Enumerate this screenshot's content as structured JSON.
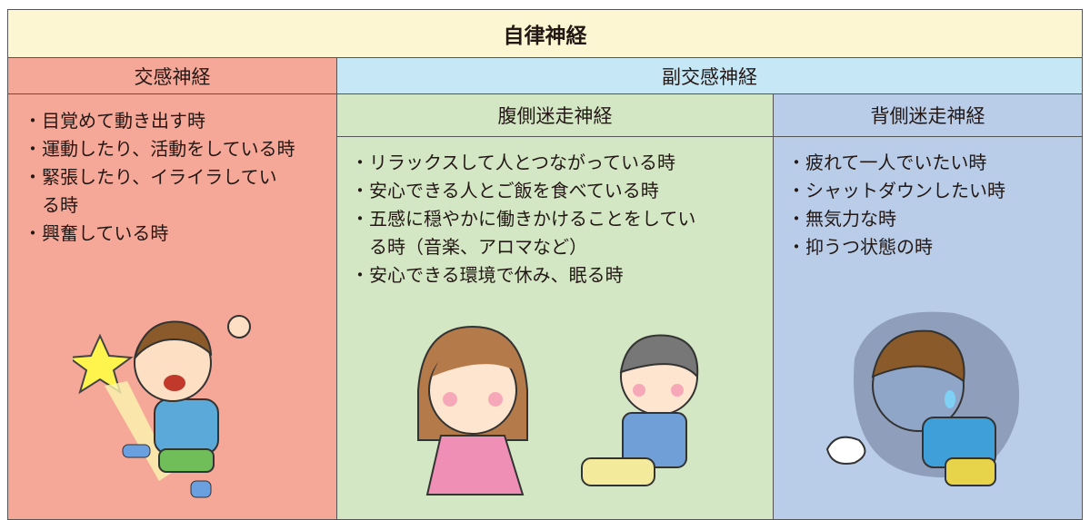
{
  "title": "自律神経",
  "sympathetic": {
    "header": "交感神経",
    "items": [
      [
        "・目覚めて動き出す時"
      ],
      [
        "・運動したり、活動をしている時"
      ],
      [
        "・緊張したり、イライラしてい",
        "る時"
      ],
      [
        "・興奮している時"
      ]
    ]
  },
  "parasympathetic": {
    "header": "副交感神経",
    "ventral": {
      "header": "腹側迷走神経",
      "items": [
        [
          "・リラックスして人とつながっている時"
        ],
        [
          "・安心できる人とご飯を食べている時"
        ],
        [
          "・五感に穏やかに働きかけることをしてい",
          "る時（音楽、アロマなど）"
        ],
        [
          "・安心できる環境で休み、眠る時"
        ]
      ]
    },
    "dorsal": {
      "header": "背側迷走神経",
      "items": [
        [
          "・疲れて一人でいたい時"
        ],
        [
          "・シャットダウンしたい時"
        ],
        [
          "・無気力な時"
        ],
        [
          "・抑うつ状態の時"
        ]
      ]
    }
  }
}
